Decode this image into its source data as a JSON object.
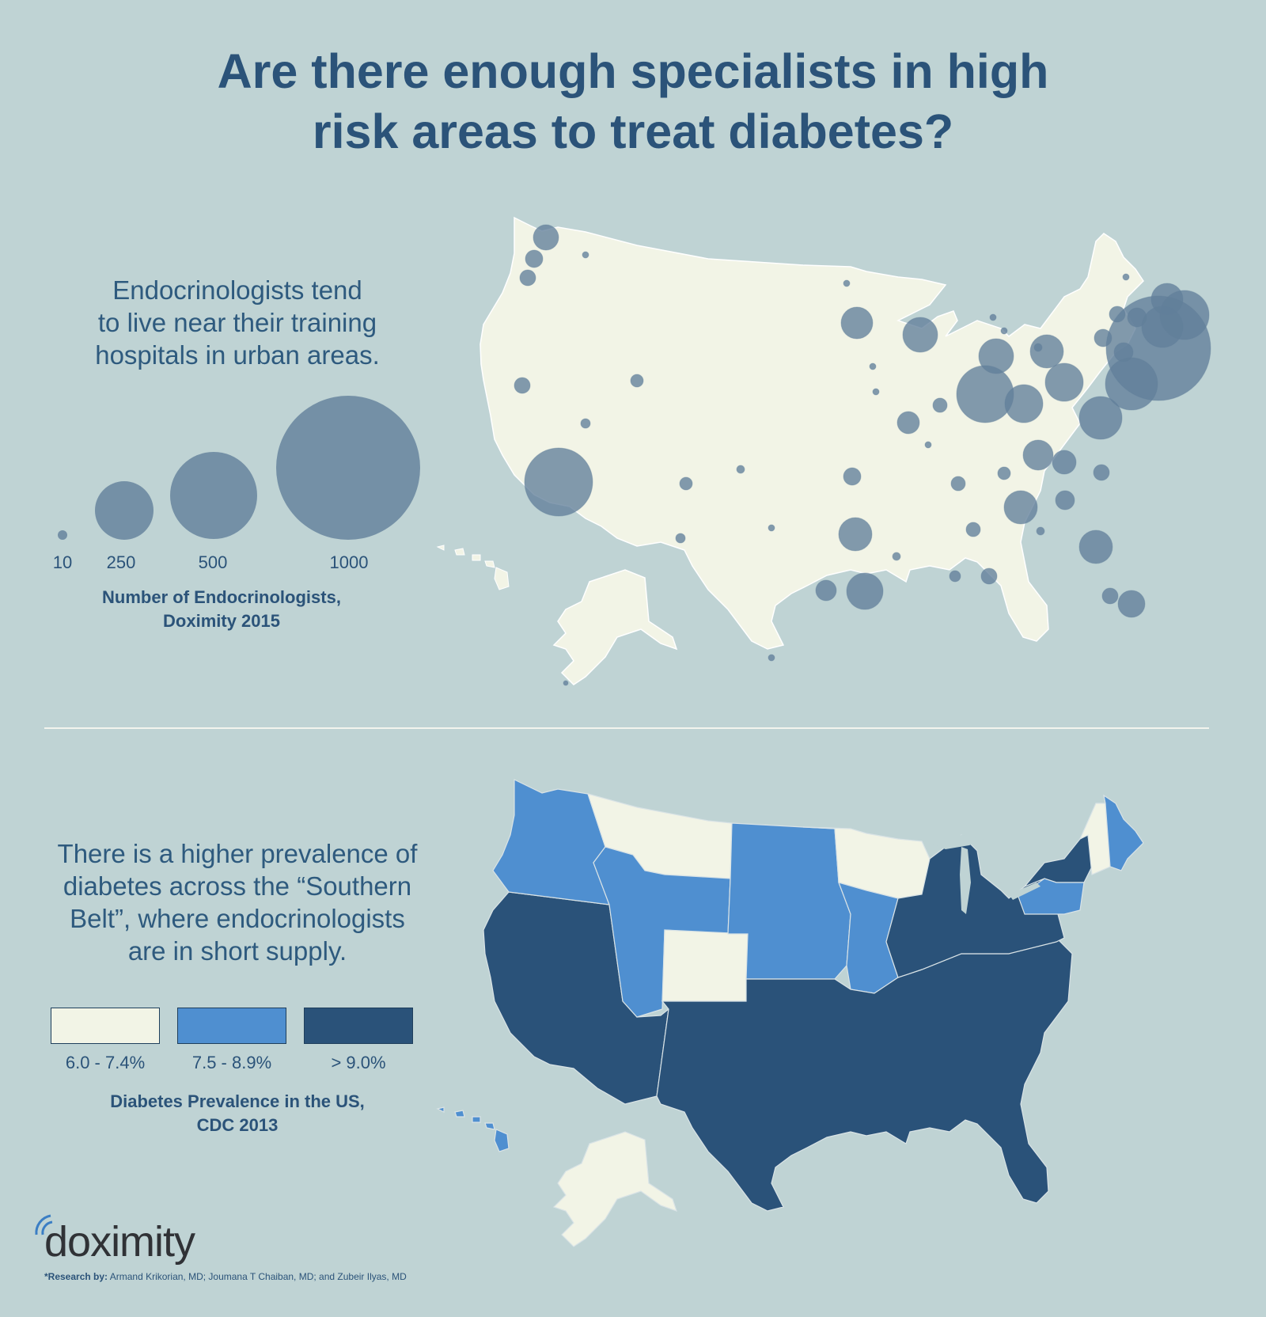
{
  "title": {
    "line1": "Are there enough specialists in high",
    "line2": "risk areas to treat diabetes?"
  },
  "top_section": {
    "intro_lines": [
      "Endocrinologists tend",
      "to live near their training",
      "hospitals in urban areas."
    ],
    "legend": {
      "sizes": [
        {
          "value": 10,
          "label": "10"
        },
        {
          "value": 250,
          "label": "250"
        },
        {
          "value": 500,
          "label": "500"
        },
        {
          "value": 1000,
          "label": "1000"
        }
      ],
      "title_line1": "Number of Endocrinologists,",
      "title_line2": "Doximity 2015"
    },
    "bubble_color": "#627f9a"
  },
  "bottom_section": {
    "intro_lines": [
      "There is a higher prevalence of",
      "diabetes across the “Southern",
      "Belt”, where endocrinologists",
      "are in short supply."
    ],
    "legend": {
      "categories": [
        {
          "label": "6.0 - 7.4%",
          "color": "#f2f4e6"
        },
        {
          "label": "7.5 - 8.9%",
          "color": "#4f8fd0"
        },
        {
          "label": "> 9.0%",
          "color": "#2a5279"
        }
      ],
      "title_line1": "Diabetes Prevalence in the US,",
      "title_line2": "CDC 2013"
    }
  },
  "map_land_color": "#f2f4e6",
  "brand": {
    "name": "doximity"
  },
  "credit": {
    "label": "*Research by:",
    "text": "Armand Krikorian, MD; Joumana T Chaiban, MD; and Zubeir Ilyas, MD"
  }
}
